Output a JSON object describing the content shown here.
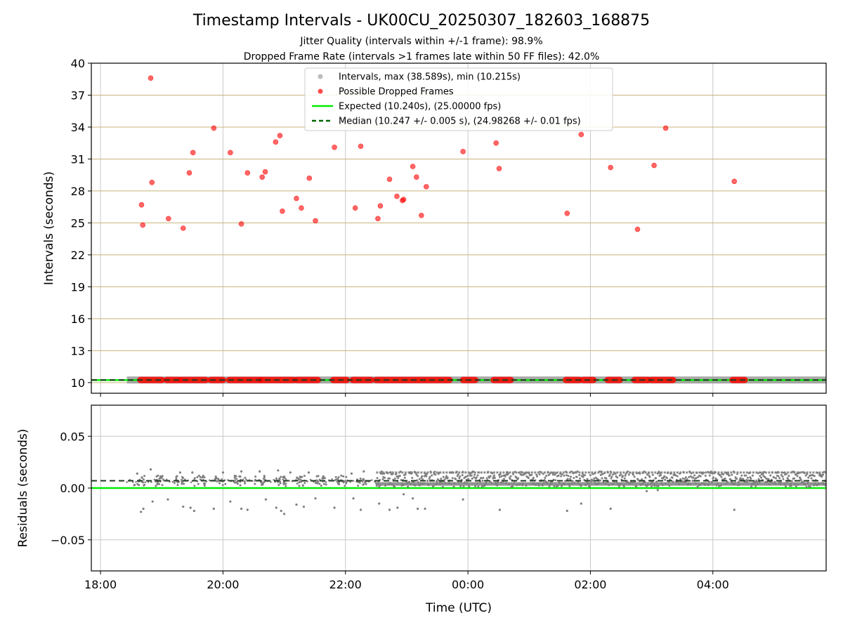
{
  "figure": {
    "title": "Timestamp Intervals - UK00CU_20250307_182603_168875",
    "subtitle_1": "Jitter Quality (intervals within +/-1 frame): 98.9%",
    "subtitle_2": "Dropped Frame Rate (intervals >1 frames late within 50 FF files): 42.0%"
  },
  "colors": {
    "intervals": "#a0a0a0",
    "dropped": "#ff0000",
    "expected": "#00ee00",
    "median": "#006400",
    "hgrid_top": "#c8b47a",
    "grid": "#c8c8c8",
    "residual_points": "#7f7f7f"
  },
  "chart_data": [
    {
      "type": "scatter",
      "panel": "top",
      "xlabel": "",
      "ylabel": "Intervals (seconds)",
      "ylim": [
        9,
        40
      ],
      "yticks": [
        10,
        13,
        16,
        19,
        22,
        25,
        28,
        31,
        34,
        37,
        40
      ],
      "ytick_labels": [
        "10",
        "13",
        "16",
        "19",
        "22",
        "25",
        "28",
        "31",
        "34",
        "37",
        "40"
      ],
      "xlim_hours": [
        17.85,
        29.85
      ],
      "xticks_hours": [
        18,
        20,
        22,
        24,
        26,
        28
      ],
      "grid": true,
      "legend_position": "upper center",
      "legend": [
        {
          "label": "Intervals, max (38.589s), min (10.215s)",
          "kind": "marker",
          "color": "#a0a0a0"
        },
        {
          "label": "Possible Dropped Frames",
          "kind": "marker",
          "color": "#ff0000"
        },
        {
          "label": "Expected (10.240s), (25.00000 fps)",
          "kind": "solid",
          "color": "#00ee00"
        },
        {
          "label": "Median (10.247 +/- 0.005 s), (24.98268 +/- 0.01 fps)",
          "kind": "dashed",
          "color": "#006400"
        }
      ],
      "expected_value": 10.24,
      "median_value": 10.247,
      "interval_baseline": {
        "value": 10.247,
        "x_start_hours": 18.43,
        "x_end_hours": 29.85
      },
      "dropped_frames_high": [
        {
          "x": 18.67,
          "y": 26.7
        },
        {
          "x": 18.69,
          "y": 24.8
        },
        {
          "x": 18.82,
          "y": 38.6
        },
        {
          "x": 18.84,
          "y": 28.8
        },
        {
          "x": 19.11,
          "y": 25.4
        },
        {
          "x": 19.35,
          "y": 24.5
        },
        {
          "x": 19.45,
          "y": 29.7
        },
        {
          "x": 19.51,
          "y": 31.6
        },
        {
          "x": 19.85,
          "y": 33.9
        },
        {
          "x": 20.12,
          "y": 31.6
        },
        {
          "x": 20.3,
          "y": 24.9
        },
        {
          "x": 20.4,
          "y": 29.7
        },
        {
          "x": 20.64,
          "y": 29.3
        },
        {
          "x": 20.69,
          "y": 29.8
        },
        {
          "x": 20.86,
          "y": 32.6
        },
        {
          "x": 20.93,
          "y": 33.2
        },
        {
          "x": 20.97,
          "y": 26.1
        },
        {
          "x": 21.2,
          "y": 27.3
        },
        {
          "x": 21.28,
          "y": 26.4
        },
        {
          "x": 21.41,
          "y": 29.2
        },
        {
          "x": 21.51,
          "y": 25.2
        },
        {
          "x": 21.82,
          "y": 32.1
        },
        {
          "x": 22.16,
          "y": 26.4
        },
        {
          "x": 22.25,
          "y": 32.2
        },
        {
          "x": 22.53,
          "y": 25.4
        },
        {
          "x": 22.57,
          "y": 26.6
        },
        {
          "x": 22.72,
          "y": 29.1
        },
        {
          "x": 22.84,
          "y": 27.5
        },
        {
          "x": 22.93,
          "y": 27.1
        },
        {
          "x": 22.95,
          "y": 27.2
        },
        {
          "x": 23.1,
          "y": 30.3
        },
        {
          "x": 23.16,
          "y": 29.3
        },
        {
          "x": 23.24,
          "y": 25.7
        },
        {
          "x": 23.32,
          "y": 28.4
        },
        {
          "x": 23.92,
          "y": 31.7
        },
        {
          "x": 24.46,
          "y": 32.5
        },
        {
          "x": 24.51,
          "y": 30.1
        },
        {
          "x": 25.62,
          "y": 25.9
        },
        {
          "x": 25.85,
          "y": 33.3
        },
        {
          "x": 26.33,
          "y": 30.2
        },
        {
          "x": 26.77,
          "y": 24.4
        },
        {
          "x": 27.04,
          "y": 30.4
        },
        {
          "x": 27.23,
          "y": 33.9
        },
        {
          "x": 28.35,
          "y": 28.9
        }
      ],
      "dropped_frames_baseline_runs": [
        [
          18.65,
          19.0
        ],
        [
          19.08,
          19.28
        ],
        [
          19.32,
          19.72
        ],
        [
          19.8,
          20.0
        ],
        [
          20.1,
          20.6
        ],
        [
          20.62,
          21.15
        ],
        [
          21.2,
          21.55
        ],
        [
          21.8,
          22.02
        ],
        [
          22.12,
          22.42
        ],
        [
          22.5,
          23.7
        ],
        [
          23.92,
          24.12
        ],
        [
          24.42,
          24.7
        ],
        [
          25.6,
          25.82
        ],
        [
          25.88,
          26.05
        ],
        [
          26.28,
          26.48
        ],
        [
          26.72,
          26.95
        ],
        [
          27.0,
          27.35
        ],
        [
          28.32,
          28.52
        ]
      ]
    },
    {
      "type": "scatter",
      "panel": "bottom",
      "xlabel": "Time (UTC)",
      "ylabel": "Residuals (seconds)",
      "ylim": [
        -0.08,
        0.08
      ],
      "yticks": [
        -0.05,
        0.0,
        0.05
      ],
      "ytick_labels": [
        "−0.05",
        "0.00",
        "0.05"
      ],
      "xlim_hours": [
        17.85,
        29.85
      ],
      "xticks_hours": [
        18,
        20,
        22,
        24,
        26,
        28
      ],
      "xtick_labels": [
        "18:00",
        "20:00",
        "22:00",
        "00:00",
        "02:00",
        "04:00"
      ],
      "grid": true,
      "expected_value": 0.0,
      "median_value": 0.007,
      "sparse_band": {
        "x_start_hours": 18.43,
        "x_end_hours": 22.5,
        "y_min": 0.002,
        "y_max": 0.012
      },
      "dense_band": {
        "x_start_hours": 22.5,
        "x_end_hours": 29.85,
        "y_min": 0.001,
        "y_max": 0.016
      },
      "outliers": [
        {
          "x": 18.66,
          "y": -0.023
        },
        {
          "x": 18.7,
          "y": -0.02
        },
        {
          "x": 18.85,
          "y": -0.013
        },
        {
          "x": 19.1,
          "y": -0.011
        },
        {
          "x": 19.35,
          "y": -0.018
        },
        {
          "x": 19.47,
          "y": -0.019
        },
        {
          "x": 19.53,
          "y": -0.022
        },
        {
          "x": 19.85,
          "y": -0.02
        },
        {
          "x": 20.12,
          "y": -0.013
        },
        {
          "x": 20.3,
          "y": -0.02
        },
        {
          "x": 20.4,
          "y": -0.021
        },
        {
          "x": 20.7,
          "y": -0.011
        },
        {
          "x": 20.87,
          "y": -0.019
        },
        {
          "x": 20.95,
          "y": -0.022
        },
        {
          "x": 21.0,
          "y": -0.025
        },
        {
          "x": 21.2,
          "y": -0.016
        },
        {
          "x": 21.32,
          "y": -0.018
        },
        {
          "x": 21.51,
          "y": -0.01
        },
        {
          "x": 21.82,
          "y": -0.019
        },
        {
          "x": 22.13,
          "y": -0.01
        },
        {
          "x": 22.25,
          "y": -0.021
        },
        {
          "x": 22.55,
          "y": -0.015
        },
        {
          "x": 22.72,
          "y": -0.021
        },
        {
          "x": 22.85,
          "y": -0.019
        },
        {
          "x": 22.95,
          "y": -0.006
        },
        {
          "x": 23.1,
          "y": -0.01
        },
        {
          "x": 23.18,
          "y": -0.02
        },
        {
          "x": 23.3,
          "y": -0.02
        },
        {
          "x": 23.92,
          "y": -0.011
        },
        {
          "x": 24.52,
          "y": -0.021
        },
        {
          "x": 25.62,
          "y": -0.022
        },
        {
          "x": 25.85,
          "y": -0.015
        },
        {
          "x": 26.33,
          "y": -0.02
        },
        {
          "x": 26.92,
          "y": -0.003
        },
        {
          "x": 27.1,
          "y": -0.002
        },
        {
          "x": 28.35,
          "y": -0.021
        }
      ],
      "high_outliers": [
        {
          "x": 18.6,
          "y": 0.014
        },
        {
          "x": 18.82,
          "y": 0.018
        },
        {
          "x": 19.3,
          "y": 0.015
        },
        {
          "x": 19.5,
          "y": 0.015
        },
        {
          "x": 20.0,
          "y": 0.015
        },
        {
          "x": 20.3,
          "y": 0.016
        },
        {
          "x": 20.6,
          "y": 0.016
        },
        {
          "x": 20.9,
          "y": 0.017
        },
        {
          "x": 21.1,
          "y": 0.015
        },
        {
          "x": 21.4,
          "y": 0.015
        },
        {
          "x": 22.1,
          "y": 0.014
        },
        {
          "x": 22.3,
          "y": 0.016
        }
      ]
    }
  ]
}
